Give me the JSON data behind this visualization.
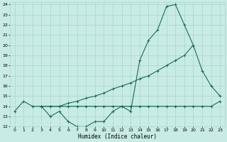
{
  "xlabel": "Humidex (Indice chaleur)",
  "bg_color": "#c8ebe5",
  "grid_color": "#a8d5cc",
  "line_color": "#1a6b5a",
  "xlim": [
    -0.5,
    23.5
  ],
  "ylim": [
    12,
    24.2
  ],
  "xticks": [
    0,
    1,
    2,
    3,
    4,
    5,
    6,
    7,
    8,
    9,
    10,
    11,
    12,
    13,
    14,
    15,
    16,
    17,
    18,
    19,
    20,
    21,
    22,
    23
  ],
  "yticks": [
    12,
    13,
    14,
    15,
    16,
    17,
    18,
    19,
    20,
    21,
    22,
    23,
    24
  ],
  "line1_x": [
    0,
    1,
    2,
    3,
    4,
    5,
    6,
    7,
    8,
    9,
    10,
    11,
    12,
    13,
    14,
    15,
    16,
    17,
    18,
    19,
    20,
    21,
    22,
    23
  ],
  "line1_y": [
    13.5,
    14.5,
    14.0,
    14.0,
    13.0,
    13.5,
    12.5,
    12.0,
    12.0,
    12.5,
    12.5,
    13.5,
    14.0,
    13.5,
    18.5,
    20.5,
    21.5,
    23.8,
    24.0,
    22.0,
    20.0,
    17.5,
    16.0,
    15.0
  ],
  "line2_x": [
    3,
    4,
    5,
    6,
    7,
    8,
    9,
    10,
    11,
    12,
    13,
    14,
    15,
    16,
    17,
    18,
    19,
    20
  ],
  "line2_y": [
    14.0,
    14.0,
    14.0,
    14.3,
    14.5,
    14.8,
    15.0,
    15.3,
    15.7,
    16.0,
    16.3,
    16.7,
    17.0,
    17.5,
    18.0,
    18.5,
    19.0,
    20.0
  ],
  "line3_x": [
    3,
    4,
    5,
    6,
    7,
    8,
    9,
    10,
    11,
    12,
    13,
    14,
    15,
    16,
    17,
    18,
    19,
    20,
    21,
    22,
    23
  ],
  "line3_y": [
    14.0,
    14.0,
    14.0,
    14.0,
    14.0,
    14.0,
    14.0,
    14.0,
    14.0,
    14.0,
    14.0,
    14.0,
    14.0,
    14.0,
    14.0,
    14.0,
    14.0,
    14.0,
    14.0,
    14.0,
    14.5
  ]
}
